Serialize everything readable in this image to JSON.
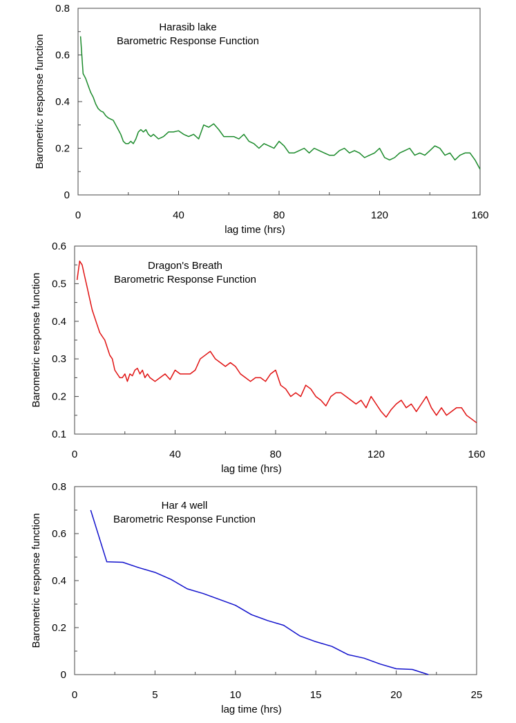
{
  "chart_data": [
    {
      "type": "line",
      "title_lines": [
        "Harasib lake",
        "Barometric Response Function"
      ],
      "xlabel": "lag time (hrs)",
      "ylabel": "Barometric response function",
      "xlim": [
        0,
        160
      ],
      "ylim": [
        0,
        0.8
      ],
      "xticks": [
        0,
        40,
        80,
        120,
        160
      ],
      "yticks": [
        0,
        0.2,
        0.4,
        0.6,
        0.8
      ],
      "minor_x_step": 20,
      "color": "#1a8a2a",
      "series": [
        {
          "x": [
            1,
            2,
            3,
            4,
            5,
            6,
            7,
            8,
            9,
            10,
            11,
            12,
            13,
            14,
            15,
            16,
            17,
            18,
            19,
            20,
            21,
            22,
            23,
            24,
            25,
            26,
            27,
            28,
            29,
            30,
            32,
            34,
            36,
            38,
            40,
            42,
            44,
            46,
            48,
            50,
            52,
            54,
            56,
            58,
            60,
            62,
            64,
            66,
            68,
            70,
            72,
            74,
            76,
            78,
            80,
            82,
            84,
            86,
            88,
            90,
            92,
            94,
            96,
            98,
            100,
            102,
            104,
            106,
            108,
            110,
            112,
            114,
            116,
            118,
            120,
            122,
            124,
            126,
            128,
            130,
            132,
            134,
            136,
            138,
            140,
            142,
            144,
            146,
            148,
            150,
            152,
            154,
            156,
            158,
            160
          ],
          "y": [
            0.68,
            0.52,
            0.5,
            0.47,
            0.44,
            0.42,
            0.39,
            0.37,
            0.36,
            0.355,
            0.34,
            0.33,
            0.325,
            0.32,
            0.3,
            0.28,
            0.26,
            0.23,
            0.22,
            0.22,
            0.23,
            0.22,
            0.24,
            0.27,
            0.28,
            0.27,
            0.28,
            0.26,
            0.25,
            0.26,
            0.24,
            0.25,
            0.27,
            0.27,
            0.275,
            0.26,
            0.25,
            0.26,
            0.24,
            0.3,
            0.29,
            0.305,
            0.28,
            0.25,
            0.25,
            0.25,
            0.24,
            0.26,
            0.23,
            0.22,
            0.2,
            0.22,
            0.21,
            0.2,
            0.23,
            0.21,
            0.18,
            0.18,
            0.19,
            0.2,
            0.18,
            0.2,
            0.19,
            0.18,
            0.17,
            0.17,
            0.19,
            0.2,
            0.18,
            0.19,
            0.18,
            0.16,
            0.17,
            0.18,
            0.2,
            0.16,
            0.15,
            0.16,
            0.18,
            0.19,
            0.2,
            0.17,
            0.18,
            0.17,
            0.19,
            0.21,
            0.2,
            0.17,
            0.18,
            0.15,
            0.17,
            0.18,
            0.18,
            0.15,
            0.11
          ]
        }
      ]
    },
    {
      "type": "line",
      "title_lines": [
        "Dragon's Breath",
        "Barometric Response Function"
      ],
      "xlabel": "lag time (hrs)",
      "ylabel": "Barometric response function",
      "xlim": [
        0,
        160
      ],
      "ylim": [
        0.1,
        0.6
      ],
      "xticks": [
        0,
        40,
        80,
        120,
        160
      ],
      "yticks": [
        0.1,
        0.2,
        0.3,
        0.4,
        0.5,
        0.6
      ],
      "minor_x_step": 20,
      "color": "#e01010",
      "series": [
        {
          "x": [
            1,
            2,
            3,
            4,
            5,
            6,
            7,
            8,
            9,
            10,
            11,
            12,
            13,
            14,
            15,
            16,
            17,
            18,
            19,
            20,
            21,
            22,
            23,
            24,
            25,
            26,
            27,
            28,
            29,
            30,
            32,
            34,
            36,
            38,
            40,
            42,
            44,
            46,
            48,
            50,
            52,
            54,
            56,
            58,
            60,
            62,
            64,
            66,
            68,
            70,
            72,
            74,
            76,
            78,
            80,
            82,
            84,
            86,
            88,
            90,
            92,
            94,
            96,
            98,
            100,
            102,
            104,
            106,
            108,
            110,
            112,
            114,
            116,
            118,
            120,
            122,
            124,
            126,
            128,
            130,
            132,
            134,
            136,
            138,
            140,
            142,
            144,
            146,
            148,
            150,
            152,
            154,
            156,
            158,
            160
          ],
          "y": [
            0.51,
            0.56,
            0.55,
            0.52,
            0.49,
            0.46,
            0.43,
            0.41,
            0.39,
            0.37,
            0.36,
            0.35,
            0.33,
            0.31,
            0.3,
            0.27,
            0.26,
            0.25,
            0.25,
            0.26,
            0.24,
            0.26,
            0.255,
            0.27,
            0.275,
            0.26,
            0.27,
            0.25,
            0.26,
            0.25,
            0.24,
            0.25,
            0.26,
            0.245,
            0.27,
            0.26,
            0.26,
            0.26,
            0.27,
            0.3,
            0.31,
            0.32,
            0.3,
            0.29,
            0.28,
            0.29,
            0.28,
            0.26,
            0.25,
            0.24,
            0.25,
            0.25,
            0.24,
            0.26,
            0.27,
            0.23,
            0.22,
            0.2,
            0.21,
            0.2,
            0.23,
            0.22,
            0.2,
            0.19,
            0.175,
            0.2,
            0.21,
            0.21,
            0.2,
            0.19,
            0.18,
            0.19,
            0.17,
            0.2,
            0.18,
            0.16,
            0.145,
            0.165,
            0.18,
            0.19,
            0.17,
            0.18,
            0.16,
            0.18,
            0.2,
            0.17,
            0.15,
            0.17,
            0.15,
            0.16,
            0.17,
            0.17,
            0.15,
            0.14,
            0.13
          ]
        }
      ]
    },
    {
      "type": "line",
      "title_lines": [
        "Har 4 well",
        "Barometric Response Function"
      ],
      "xlabel": "lag time (hrs)",
      "ylabel": "Barometric response function",
      "xlim": [
        0,
        25
      ],
      "ylim": [
        0,
        0.8
      ],
      "xticks": [
        0,
        5,
        10,
        15,
        20,
        25
      ],
      "yticks": [
        0,
        0.2,
        0.4,
        0.6,
        0.8
      ],
      "minor_x_step": 2.5,
      "color": "#1010cc",
      "series": [
        {
          "x": [
            1,
            2,
            3,
            4,
            5,
            6,
            7,
            8,
            9,
            10,
            11,
            12,
            13,
            14,
            15,
            16,
            17,
            18,
            19,
            20,
            21,
            22
          ],
          "y": [
            0.7,
            0.48,
            0.478,
            0.455,
            0.435,
            0.405,
            0.365,
            0.345,
            0.32,
            0.295,
            0.255,
            0.23,
            0.21,
            0.165,
            0.14,
            0.12,
            0.085,
            0.07,
            0.045,
            0.025,
            0.022,
            0.0
          ]
        }
      ]
    }
  ]
}
